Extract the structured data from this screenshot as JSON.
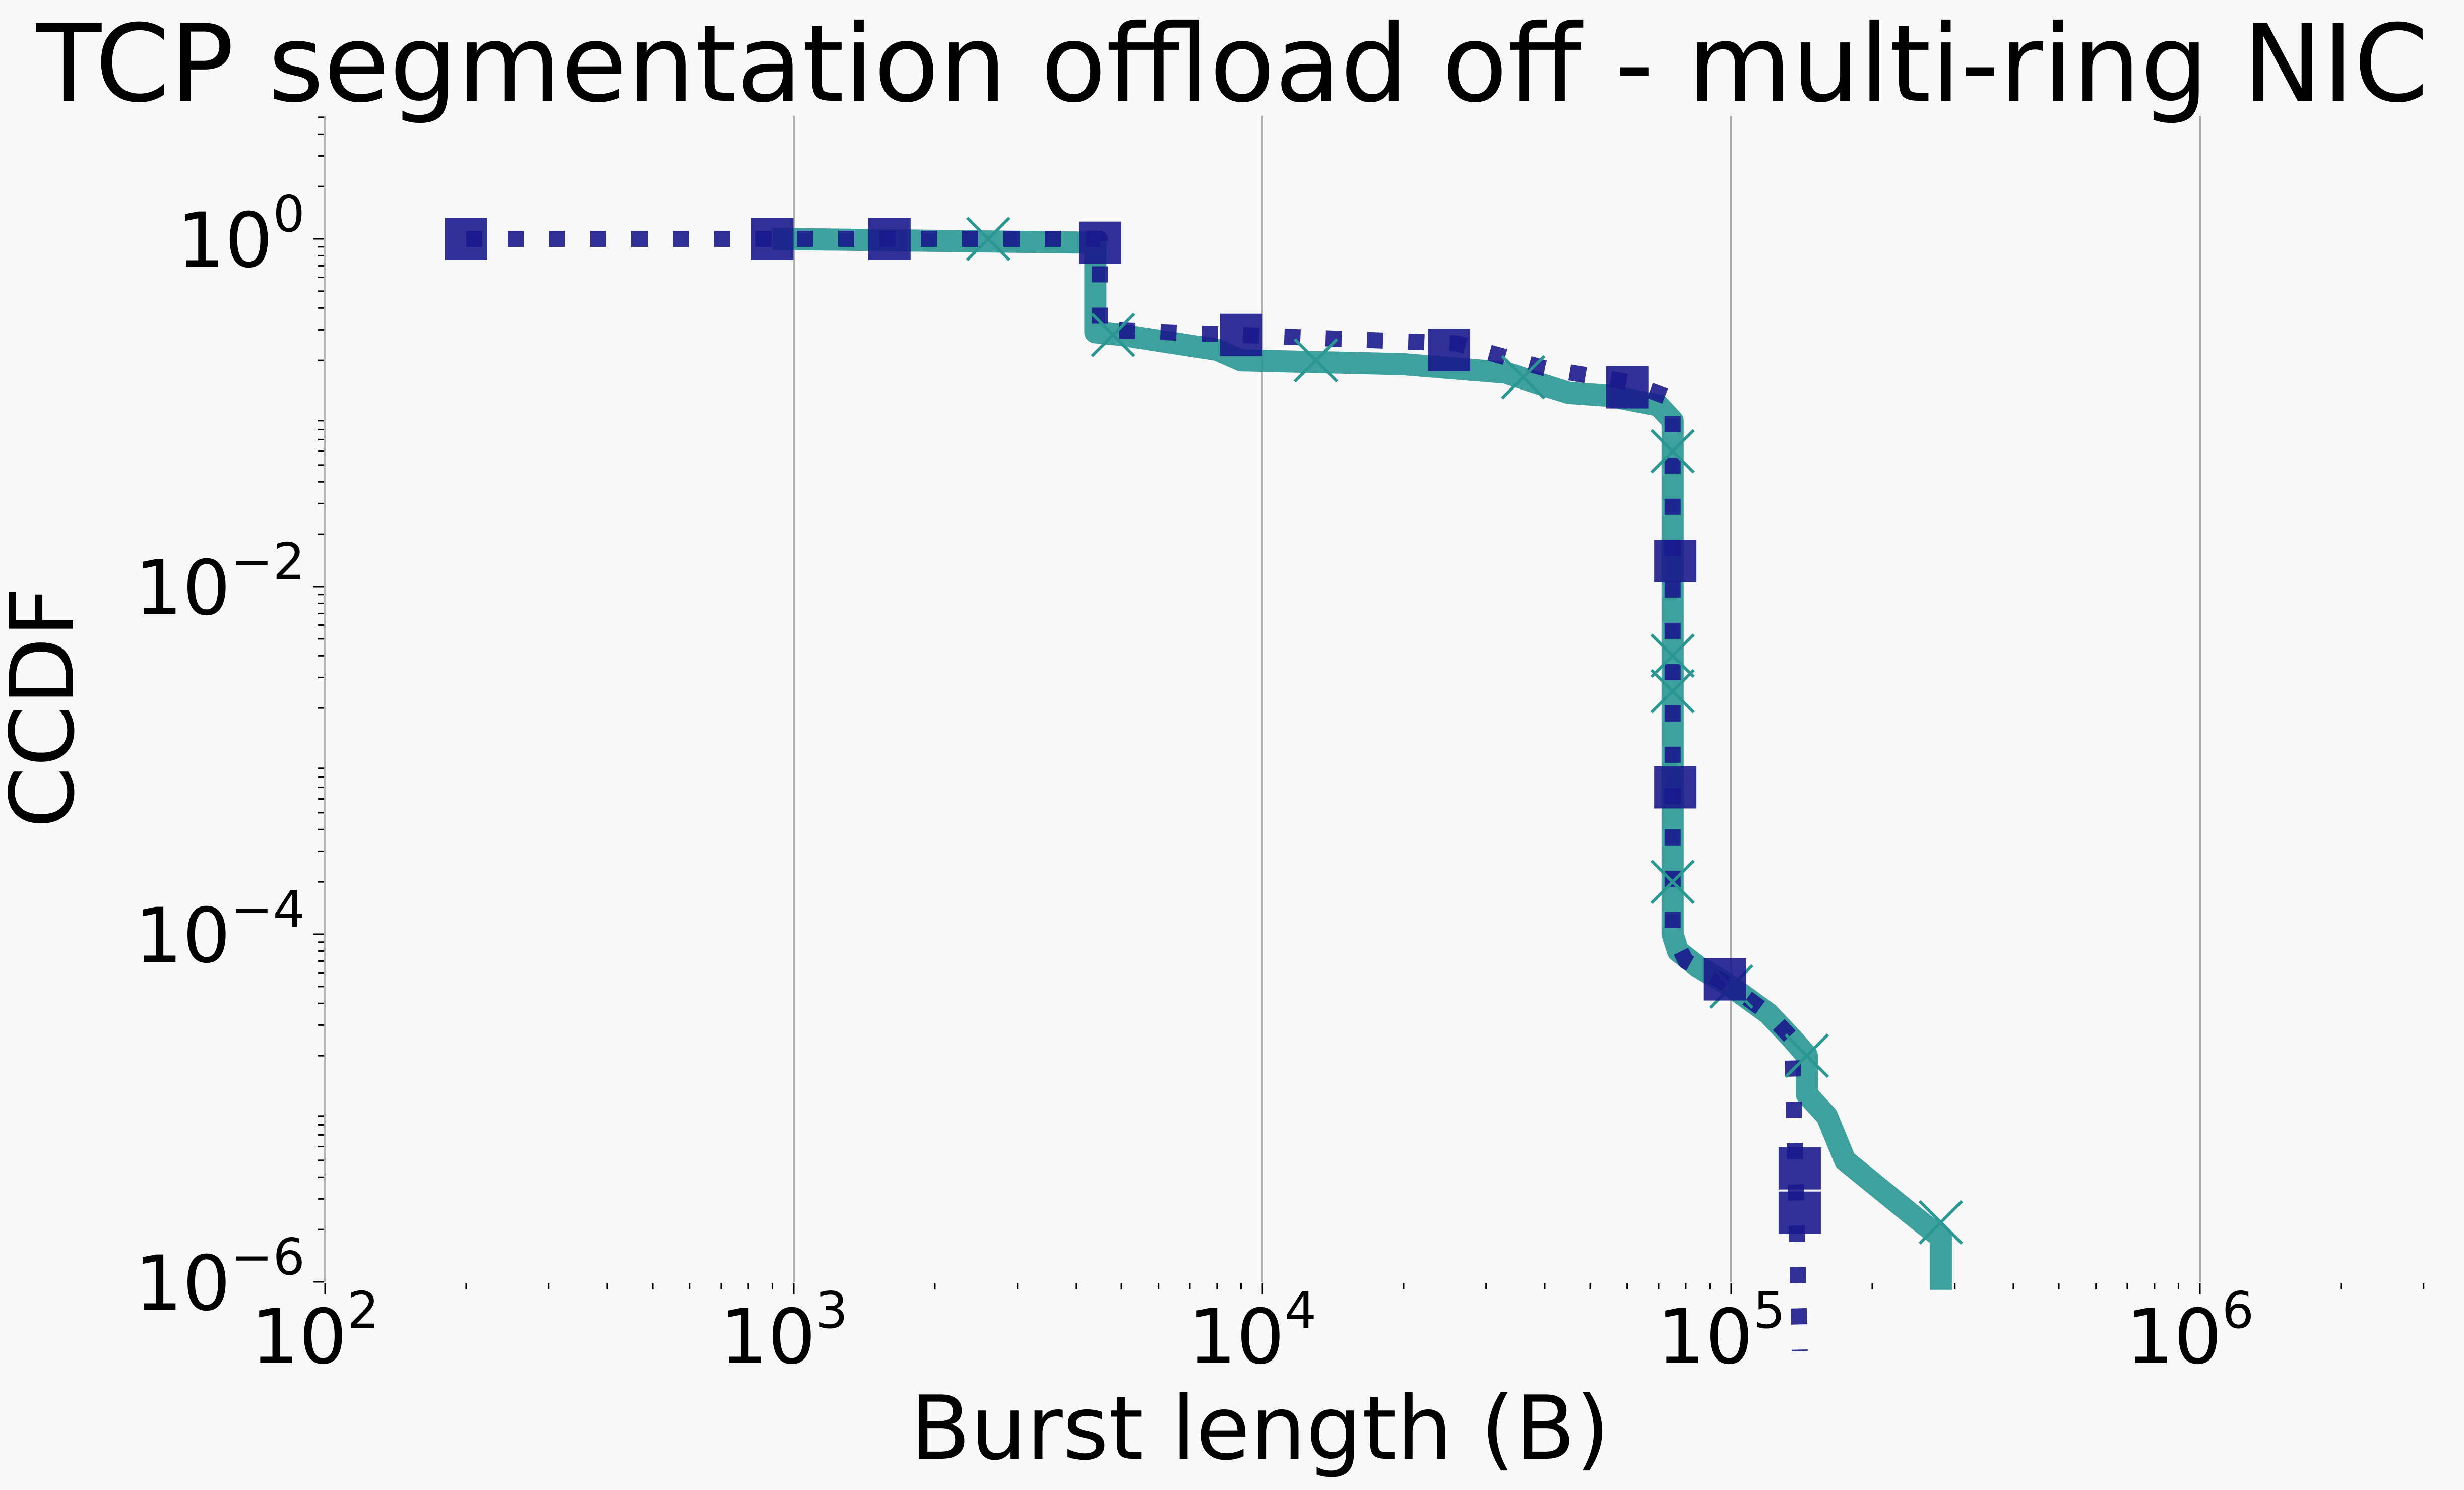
{
  "chart_data": {
    "type": "line",
    "title": "TCP segmentation offload off - multi-ring NIC",
    "xlabel": "Burst length (B)",
    "ylabel": "CCDF",
    "x_scale": "log",
    "y_scale": "log",
    "xlim": [
      100,
      3000000
    ],
    "ylim": [
      1e-06,
      5
    ],
    "grid": "vertical",
    "x_ticks": [
      {
        "value": 100,
        "base": "10",
        "exp": "2"
      },
      {
        "value": 1000,
        "base": "10",
        "exp": "3"
      },
      {
        "value": 10000,
        "base": "10",
        "exp": "4"
      },
      {
        "value": 100000,
        "base": "10",
        "exp": "5"
      },
      {
        "value": 1000000,
        "base": "10",
        "exp": "6"
      }
    ],
    "y_ticks": [
      {
        "value": 1,
        "base": "10",
        "exp": "0"
      },
      {
        "value": 0.01,
        "base": "10",
        "exp": "−2"
      },
      {
        "value": 0.0001,
        "base": "10",
        "exp": "−4"
      },
      {
        "value": 1e-06,
        "base": "10",
        "exp": "−6"
      }
    ],
    "series": [
      {
        "style": "solid",
        "marker": "x",
        "color": "#2a9793",
        "points": [
          [
            900,
            1
          ],
          [
            4400,
            0.95
          ],
          [
            4400,
            0.29
          ],
          [
            5000,
            0.28
          ],
          [
            8000,
            0.23
          ],
          [
            9000,
            0.2
          ],
          [
            20000,
            0.19
          ],
          [
            33000,
            0.17
          ],
          [
            38000,
            0.15
          ],
          [
            45000,
            0.13
          ],
          [
            55000,
            0.125
          ],
          [
            70000,
            0.11
          ],
          [
            75000,
            0.09
          ],
          [
            75000,
            0.0001
          ],
          [
            77000,
            8e-05
          ],
          [
            85000,
            6.5e-05
          ],
          [
            100000,
            5e-05
          ],
          [
            120000,
            3.5e-05
          ],
          [
            135000,
            2.5e-05
          ],
          [
            145000,
            2e-05
          ],
          [
            145000,
            1.2e-05
          ],
          [
            160000,
            9e-06
          ],
          [
            175000,
            5e-06
          ],
          [
            240000,
            2.5e-06
          ],
          [
            280000,
            1.8e-06
          ],
          [
            280000,
            9e-07
          ]
        ],
        "markers_at": [
          [
            2600,
            1
          ],
          [
            4800,
            0.28
          ],
          [
            13000,
            0.2
          ],
          [
            36000,
            0.16
          ],
          [
            75000,
            0.06
          ],
          [
            75000,
            0.004
          ],
          [
            75000,
            0.0025
          ],
          [
            75000,
            0.0002
          ],
          [
            100000,
            5e-05
          ],
          [
            145000,
            2e-05
          ],
          [
            280000,
            2.2e-06
          ]
        ]
      },
      {
        "style": "dotted",
        "marker": "square",
        "color": "#1a1a8c",
        "points": [
          [
            200,
            1
          ],
          [
            4500,
            1
          ],
          [
            4500,
            0.3
          ],
          [
            9000,
            0.28
          ],
          [
            26000,
            0.25
          ],
          [
            40000,
            0.18
          ],
          [
            60000,
            0.15
          ],
          [
            75000,
            0.12
          ],
          [
            75000,
            0.0001
          ],
          [
            80000,
            7e-05
          ],
          [
            100000,
            5e-05
          ],
          [
            120000,
            3.5e-05
          ],
          [
            135000,
            2.5e-05
          ],
          [
            140000,
            4e-07
          ]
        ],
        "markers_at": [
          [
            200,
            1
          ],
          [
            900,
            1
          ],
          [
            1600,
            1
          ],
          [
            4500,
            0.95
          ],
          [
            9000,
            0.28
          ],
          [
            25000,
            0.23
          ],
          [
            60000,
            0.14
          ],
          [
            76000,
            0.014
          ],
          [
            76000,
            0.0007
          ],
          [
            97000,
            5.5e-05
          ],
          [
            140000,
            4.5e-06
          ],
          [
            140000,
            2.5e-06
          ]
        ]
      }
    ]
  }
}
